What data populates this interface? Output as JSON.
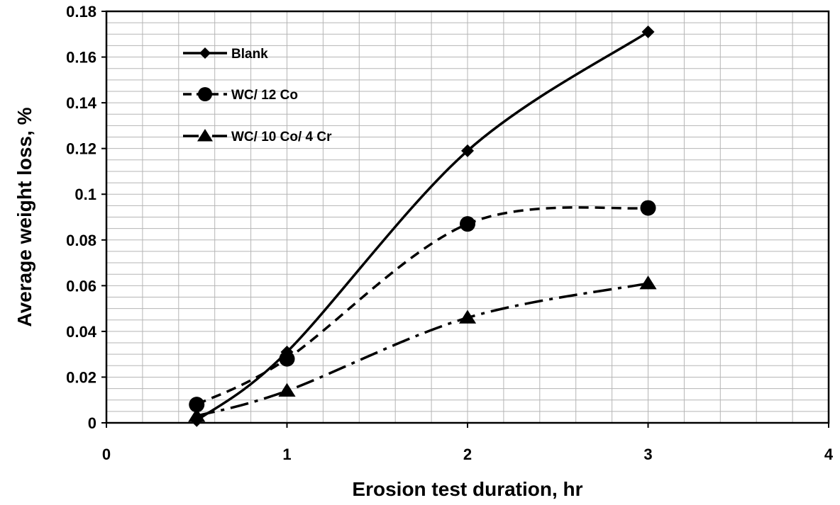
{
  "chart_data": {
    "type": "line",
    "xlabel": "Erosion test duration, hr",
    "ylabel": "Average weight loss, %",
    "xlim": [
      0,
      4
    ],
    "ylim": [
      0,
      0.18
    ],
    "x_ticks": [
      0,
      1,
      2,
      3,
      4
    ],
    "y_ticks": [
      0,
      0.02,
      0.04,
      0.06,
      0.08,
      0.1,
      0.12,
      0.14,
      0.16,
      0.18
    ],
    "x_tick_labels": [
      "0",
      "1",
      "2",
      "3",
      "4"
    ],
    "y_tick_labels": [
      "0",
      "0.02",
      "0.04",
      "0.06",
      "0.08",
      "0.1",
      "0.12",
      "0.14",
      "0.16",
      "0.18"
    ],
    "grid": true,
    "legend_position": "top-left",
    "series": [
      {
        "name": "Blank",
        "marker": "diamond",
        "line_style": "solid",
        "x": [
          0.5,
          1,
          2,
          3
        ],
        "y": [
          0.001,
          0.031,
          0.119,
          0.171
        ]
      },
      {
        "name": "WC/ 12 Co",
        "marker": "circle",
        "line_style": "dashed",
        "x": [
          0.5,
          1,
          2,
          3
        ],
        "y": [
          0.008,
          0.028,
          0.087,
          0.094
        ]
      },
      {
        "name": "WC/ 10 Co/ 4 Cr",
        "marker": "triangle",
        "line_style": "dash-dot",
        "x": [
          0.5,
          1,
          2,
          3
        ],
        "y": [
          0.003,
          0.014,
          0.046,
          0.061
        ]
      }
    ]
  }
}
